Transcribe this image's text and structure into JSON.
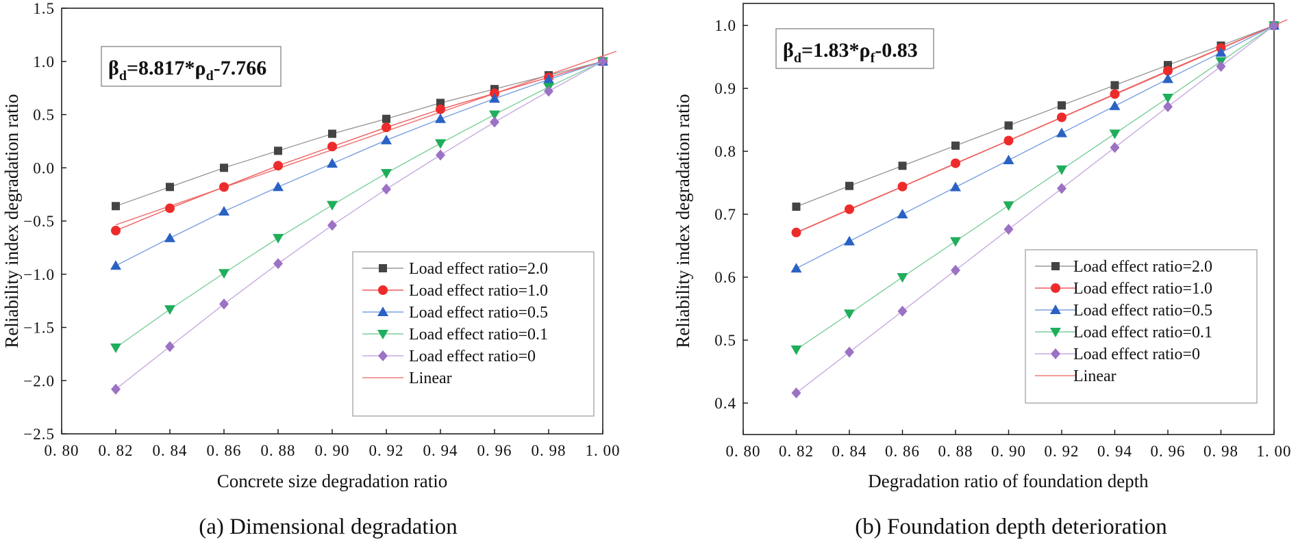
{
  "chart_data": [
    {
      "type": "line",
      "panel": "a",
      "caption": "(a) Dimensional degradation",
      "xlabel": "Concrete size degradation ratio",
      "ylabel": "Reliability index degradation ratio",
      "xlim": [
        0.8,
        1.0
      ],
      "ylim": [
        -2.5,
        1.5
      ],
      "xticks": [
        "0. 80",
        "0. 82",
        "0. 84",
        "0. 86",
        "0. 88",
        "0. 90",
        "0. 92",
        "0. 94",
        "0. 96",
        "0. 98",
        "1. 00"
      ],
      "yticks": [
        "1.5",
        "1.0",
        "0.5",
        "0.0",
        "−0.5",
        "−1.0",
        "−1.5",
        "−2.0",
        "−2.5"
      ],
      "equation": {
        "beta": "β",
        "beta_sub": "d",
        "mid": "=8.817*",
        "rho": "ρ",
        "rho_sub": "d",
        "tail": "-7.766"
      },
      "x": [
        0.82,
        0.84,
        0.86,
        0.88,
        0.9,
        0.92,
        0.94,
        0.96,
        0.98,
        1.0
      ],
      "series": [
        {
          "name": "Load effect ratio=2.0",
          "marker": "square",
          "color": "#444444",
          "line_color": "#999999",
          "values": [
            -0.36,
            -0.18,
            0.0,
            0.16,
            0.32,
            0.46,
            0.61,
            0.74,
            0.87,
            1.0
          ]
        },
        {
          "name": "Load effect ratio=1.0",
          "marker": "circle",
          "color": "#ee2b2b",
          "line_color": "#ee5a5a",
          "values": [
            -0.59,
            -0.38,
            -0.18,
            0.02,
            0.2,
            0.38,
            0.55,
            0.7,
            0.85,
            1.0
          ]
        },
        {
          "name": "Load effect ratio=0.5",
          "marker": "triangle-up",
          "color": "#2a62c4",
          "line_color": "#7aa0e0",
          "values": [
            -0.92,
            -0.66,
            -0.41,
            -0.18,
            0.04,
            0.26,
            0.46,
            0.65,
            0.83,
            1.0
          ]
        },
        {
          "name": "Load effect ratio=0.1",
          "marker": "triangle-down",
          "color": "#1fae5b",
          "line_color": "#7ccf9b",
          "values": [
            -1.69,
            -1.33,
            -0.99,
            -0.66,
            -0.35,
            -0.05,
            0.23,
            0.5,
            0.76,
            1.0
          ]
        },
        {
          "name": "Load effect ratio=0",
          "marker": "diamond",
          "color": "#9b72c4",
          "line_color": "#c7a9e0",
          "values": [
            -2.08,
            -1.68,
            -1.28,
            -0.9,
            -0.54,
            -0.2,
            0.12,
            0.43,
            0.72,
            1.0
          ]
        }
      ],
      "fit": {
        "name": "Linear",
        "color": "#f07a7a",
        "slope": 8.817,
        "intercept": -7.766
      }
    },
    {
      "type": "line",
      "panel": "b",
      "caption": "(b) Foundation depth deterioration",
      "xlabel": "Degradation ratio of foundation depth",
      "ylabel": "Reliability index degradation ratio",
      "xlim": [
        0.8,
        1.0
      ],
      "ylim": [
        0.35,
        1.035
      ],
      "xticks": [
        "0. 80",
        "0. 82",
        "0. 84",
        "0. 86",
        "0. 88",
        "0. 90",
        "0. 92",
        "0. 94",
        "0. 96",
        "0. 98",
        "1. 00"
      ],
      "yticks": [
        "1.0",
        "0.9",
        "0.8",
        "0.7",
        "0.6",
        "0.5",
        "0.4"
      ],
      "equation": {
        "beta": "β",
        "beta_sub": "d",
        "mid": "=1.83*",
        "rho": "ρ",
        "rho_sub": "f",
        "tail": "-0.83"
      },
      "x": [
        0.82,
        0.84,
        0.86,
        0.88,
        0.9,
        0.92,
        0.94,
        0.96,
        0.98,
        1.0
      ],
      "series": [
        {
          "name": "Load effect ratio=2.0",
          "marker": "square",
          "color": "#444444",
          "line_color": "#999999",
          "values": [
            0.712,
            0.745,
            0.777,
            0.809,
            0.841,
            0.873,
            0.905,
            0.937,
            0.968,
            1.0
          ]
        },
        {
          "name": "Load effect ratio=1.0",
          "marker": "circle",
          "color": "#ee2b2b",
          "line_color": "#ee5a5a",
          "values": [
            0.671,
            0.708,
            0.744,
            0.781,
            0.817,
            0.854,
            0.891,
            0.928,
            0.964,
            1.0
          ]
        },
        {
          "name": "Load effect ratio=0.5",
          "marker": "triangle-up",
          "color": "#2a62c4",
          "line_color": "#7aa0e0",
          "values": [
            0.614,
            0.657,
            0.7,
            0.743,
            0.786,
            0.829,
            0.872,
            0.915,
            0.957,
            1.0
          ]
        },
        {
          "name": "Load effect ratio=0.1",
          "marker": "triangle-down",
          "color": "#1fae5b",
          "line_color": "#7ccf9b",
          "values": [
            0.485,
            0.542,
            0.6,
            0.657,
            0.714,
            0.771,
            0.828,
            0.885,
            0.943,
            1.0
          ]
        },
        {
          "name": "Load effect ratio=0",
          "marker": "diamond",
          "color": "#9b72c4",
          "line_color": "#c7a9e0",
          "values": [
            0.416,
            0.481,
            0.546,
            0.611,
            0.676,
            0.741,
            0.806,
            0.871,
            0.935,
            1.0
          ]
        }
      ],
      "fit": {
        "name": "Linear",
        "color": "#f07a7a",
        "slope": 1.83,
        "intercept": -0.83
      }
    }
  ]
}
